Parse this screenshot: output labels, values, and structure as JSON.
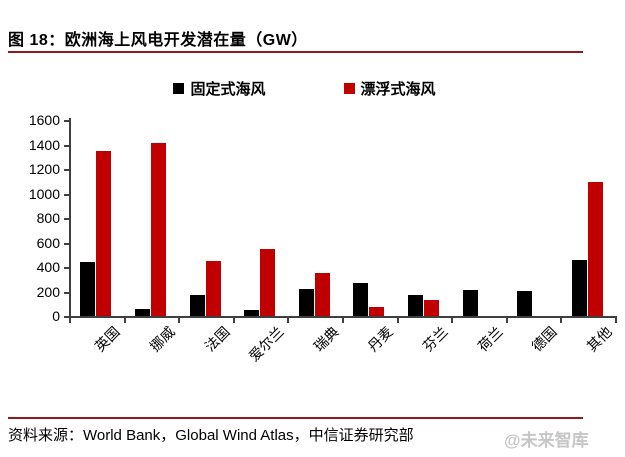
{
  "header": {
    "title": "图 18：欧洲海上风电开发潜在量（GW）"
  },
  "chart_data": {
    "type": "bar",
    "title": "欧洲海上风电开发潜在量（GW）",
    "unit": "GW",
    "categories": [
      "英国",
      "挪威",
      "法国",
      "爱尔兰",
      "瑞典",
      "丹麦",
      "芬兰",
      "荷兰",
      "德国",
      "其他"
    ],
    "series": [
      {
        "name": "固定式海风",
        "color": "#000000",
        "values": [
          440,
          60,
          170,
          50,
          220,
          270,
          170,
          210,
          200,
          460
        ]
      },
      {
        "name": "漂浮式海风",
        "color": "#C00000",
        "values": [
          1350,
          1410,
          450,
          550,
          350,
          70,
          130,
          0,
          0,
          1090
        ]
      }
    ],
    "ylim": [
      0,
      1600
    ],
    "ytick_step": 200,
    "ytick_labels": [
      "0",
      "200",
      "400",
      "600",
      "800",
      "1000",
      "1200",
      "1400",
      "1600"
    ],
    "grid": false,
    "legend_position": "top"
  },
  "footer": {
    "source_text": "资料来源：World Bank，Global Wind Atlas，中信证券研究部",
    "watermark": "@未来智库"
  },
  "colors": {
    "accent_rule": "#8E1B1E",
    "bar_fixed": "#000000",
    "bar_floating": "#C00000",
    "axis": "#3F3F3F",
    "watermark": "#C6C6C6"
  }
}
